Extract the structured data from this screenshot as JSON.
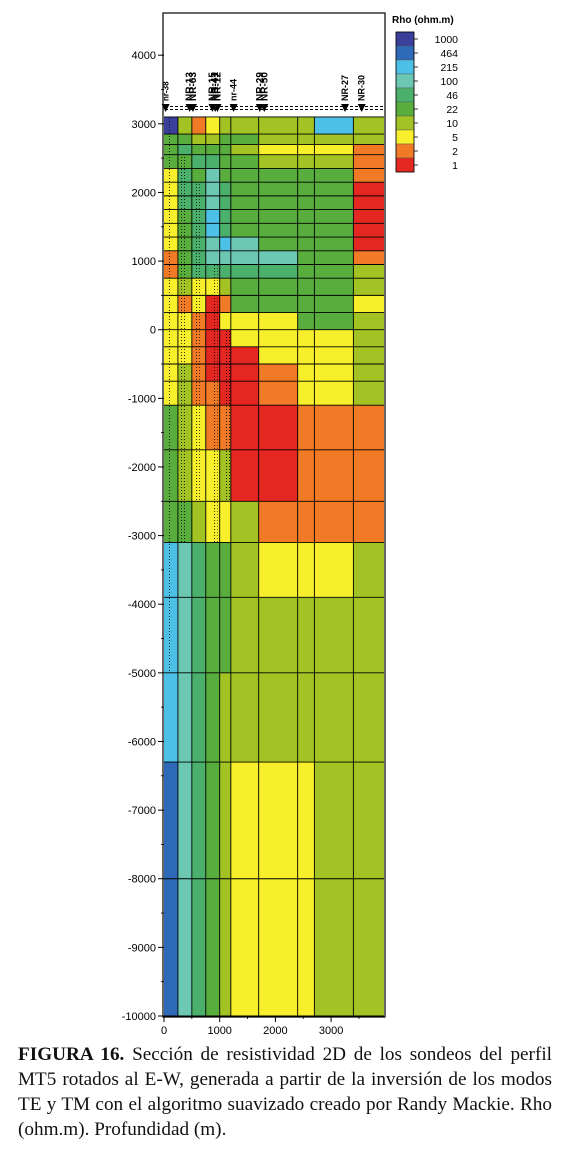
{
  "figure": {
    "legend_title": "Rho (ohm.m)",
    "stations": [
      "nr-38",
      "NR-13",
      "NR-63",
      "NR-15",
      "NR-41",
      "NR-12",
      "nr-44",
      "NR-29",
      "NR-50",
      "NR-27",
      "NR-30"
    ],
    "colors": {
      "1000": "#3a3f9b",
      "464": "#2e6ab8",
      "215": "#4cc0e6",
      "100": "#6cc8b2",
      "46": "#4bb06c",
      "22": "#58ad3c",
      "10": "#a3c324",
      "5": "#f7ef2b",
      "2": "#f07a25",
      "1": "#e52722",
      "grid": "#000000"
    }
  },
  "chart_data": {
    "type": "heatmap",
    "title": "",
    "xlabel": "",
    "ylabel": "",
    "xlim": [
      0,
      4000
    ],
    "ylim": [
      -10000,
      4600
    ],
    "x_ticks": [
      "0",
      "1000",
      "2000",
      "3000"
    ],
    "y_ticks": [
      "4000",
      "3000",
      "2000",
      "1000",
      "0",
      "-1000",
      "-2000",
      "-3000",
      "-4000",
      "-5000",
      "-6000",
      "-7000",
      "-8000",
      "-9000",
      "-10000"
    ],
    "x_values": [
      0,
      1000,
      2000,
      3000
    ],
    "y_values": [
      4000,
      3000,
      2000,
      1000,
      0,
      -1000,
      -2000,
      -3000,
      -4000,
      -5000,
      -6000,
      -7000,
      -8000,
      -9000,
      -10000
    ],
    "legend": [
      "1000",
      "464",
      "215",
      "100",
      "46",
      "22",
      "10",
      "5",
      "2",
      "1"
    ],
    "legend_values": [
      1000,
      464,
      215,
      100,
      46,
      22,
      10,
      5,
      2,
      1
    ],
    "column_edges": [
      0,
      250,
      500,
      750,
      1000,
      1200,
      1700,
      2400,
      2700,
      3400,
      3850
    ],
    "row_edges": [
      3100,
      2850,
      2700,
      2550,
      2350,
      2150,
      1950,
      1750,
      1550,
      1350,
      1150,
      950,
      750,
      500,
      250,
      0,
      -250,
      -500,
      -750,
      -1100,
      -1750,
      -2500,
      -3100,
      -3900,
      -5000,
      -6300,
      -8000,
      -10000
    ],
    "resistivity_class": [
      [
        "1000",
        "10",
        "2",
        "5",
        "10",
        "10",
        "10",
        "10",
        "215",
        "10"
      ],
      [
        "22",
        "22",
        "10",
        "10",
        "22",
        "22",
        "10",
        "10",
        "10",
        "10"
      ],
      [
        "22",
        "46",
        "22",
        "22",
        "22",
        "10",
        "5",
        "5",
        "5",
        "2"
      ],
      [
        "22",
        "22",
        "46",
        "46",
        "22",
        "22",
        "10",
        "10",
        "10",
        "2"
      ],
      [
        "5",
        "46",
        "22",
        "100",
        "22",
        "22",
        "22",
        "22",
        "22",
        "2"
      ],
      [
        "5",
        "46",
        "46",
        "100",
        "46",
        "22",
        "22",
        "22",
        "22",
        "1"
      ],
      [
        "5",
        "46",
        "46",
        "100",
        "46",
        "22",
        "22",
        "22",
        "22",
        "1"
      ],
      [
        "5",
        "22",
        "46",
        "215",
        "46",
        "22",
        "22",
        "22",
        "22",
        "1"
      ],
      [
        "5",
        "22",
        "46",
        "215",
        "46",
        "22",
        "22",
        "22",
        "22",
        "1"
      ],
      [
        "5",
        "22",
        "46",
        "100",
        "215",
        "100",
        "22",
        "22",
        "22",
        "1"
      ],
      [
        "2",
        "22",
        "46",
        "100",
        "100",
        "100",
        "100",
        "22",
        "22",
        "2"
      ],
      [
        "2",
        "22",
        "46",
        "46",
        "46",
        "46",
        "46",
        "22",
        "22",
        "10"
      ],
      [
        "5",
        "10",
        "5",
        "5",
        "10",
        "22",
        "22",
        "22",
        "22",
        "10"
      ],
      [
        "5",
        "2",
        "5",
        "1",
        "2",
        "22",
        "22",
        "22",
        "22",
        "5"
      ],
      [
        "5",
        "5",
        "2",
        "1",
        "5",
        "5",
        "5",
        "22",
        "22",
        "10"
      ],
      [
        "5",
        "5",
        "2",
        "1",
        "1",
        "5",
        "5",
        "5",
        "5",
        "10"
      ],
      [
        "5",
        "5",
        "2",
        "1",
        "1",
        "1",
        "5",
        "5",
        "5",
        "10"
      ],
      [
        "5",
        "10",
        "2",
        "1",
        "1",
        "1",
        "2",
        "5",
        "5",
        "10"
      ],
      [
        "5",
        "10",
        "2",
        "2",
        "1",
        "1",
        "2",
        "5",
        "5",
        "10"
      ],
      [
        "22",
        "10",
        "5",
        "2",
        "2",
        "1",
        "1",
        "2",
        "2",
        "2"
      ],
      [
        "22",
        "10",
        "5",
        "5",
        "10",
        "1",
        "1",
        "2",
        "2",
        "2"
      ],
      [
        "22",
        "22",
        "10",
        "5",
        "5",
        "10",
        "2",
        "2",
        "2",
        "2"
      ],
      [
        "215",
        "100",
        "46",
        "22",
        "22",
        "10",
        "5",
        "5",
        "5",
        "10"
      ],
      [
        "215",
        "100",
        "46",
        "22",
        "22",
        "10",
        "10",
        "10",
        "10",
        "10"
      ],
      [
        "215",
        "100",
        "46",
        "22",
        "10",
        "10",
        "10",
        "10",
        "10",
        "10"
      ],
      [
        "464",
        "100",
        "46",
        "22",
        "10",
        "5",
        "5",
        "5",
        "10",
        "10"
      ],
      [
        "464",
        "100",
        "46",
        "22",
        "10",
        "5",
        "5",
        "5",
        "10",
        "10"
      ]
    ]
  },
  "caption": {
    "label": "FIGURA 16.",
    "text": "Sección de resistividad 2D de los sondeos del perfil MT5 rotados al E-W,  generada a partir de la inversión de los modos TE y TM  con el algoritmo suavizado creado por Randy Mackie. Rho (ohm.m). Profundidad (m)."
  }
}
